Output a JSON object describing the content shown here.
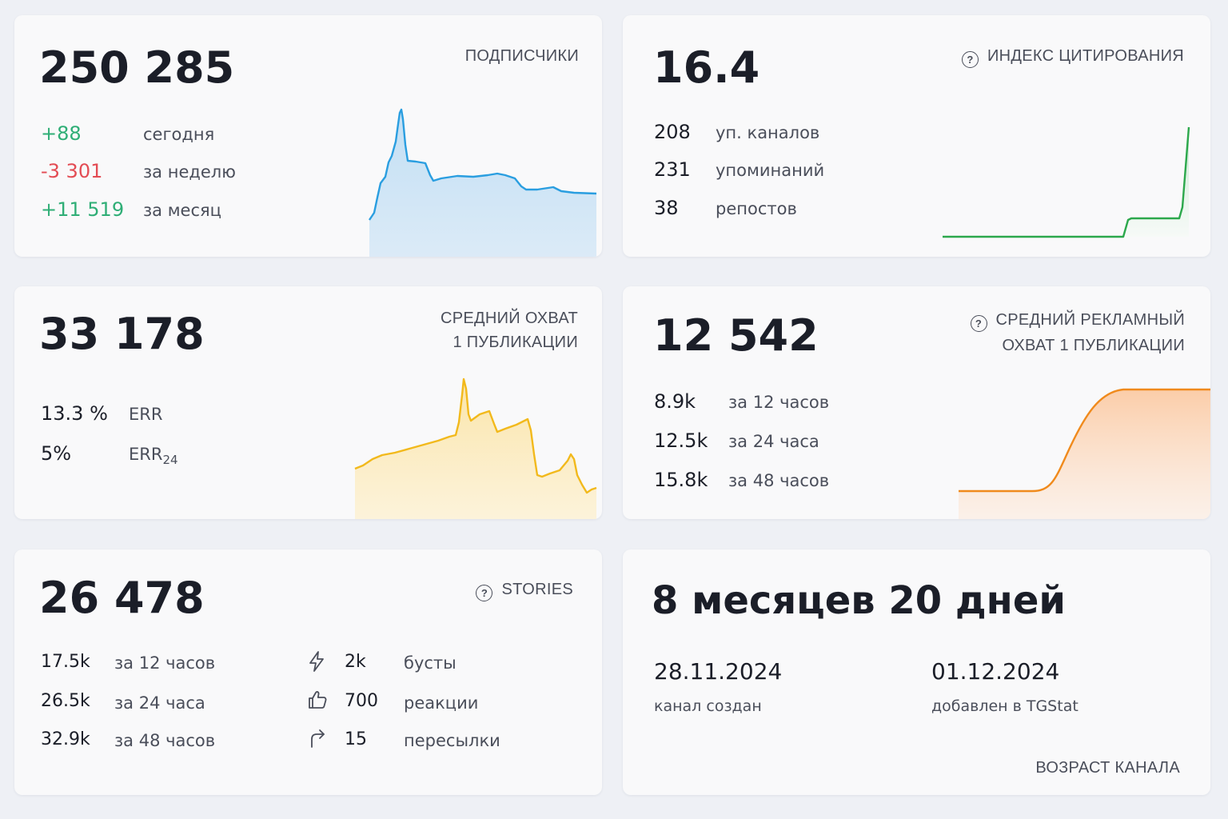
{
  "subscribers": {
    "value": "250 285",
    "caption": "ПОДПИСЧИКИ",
    "rows": [
      {
        "value": "+88",
        "label": "сегодня"
      },
      {
        "value": "-3 301",
        "label": "за неделю"
      },
      {
        "value": "+11 519",
        "label": "за месяц"
      }
    ],
    "color": "#2a9ee0"
  },
  "citation": {
    "value": "16.4",
    "caption": "ИНДЕКС ЦИТИРОВАНИЯ",
    "icon": "question-circle-icon",
    "rows": [
      {
        "value": "208",
        "label": "уп. каналов"
      },
      {
        "value": "231",
        "label": "упоминаний"
      },
      {
        "value": "38",
        "label": "репостов"
      }
    ],
    "color": "#2ca84c"
  },
  "reach": {
    "value": "33 178",
    "caption_line1": "СРЕДНИЙ ОХВАТ",
    "caption_line2": "1 ПУБЛИКАЦИИ",
    "rows": [
      {
        "value": "13.3 %",
        "label": "ERR",
        "sub": ""
      },
      {
        "value": "5%",
        "label": "ERR",
        "sub": "24"
      }
    ],
    "color": "#f2b91c"
  },
  "ad_reach": {
    "value": "12 542",
    "caption_line1": "СРЕДНИЙ РЕКЛАМНЫЙ",
    "caption_line2": "ОХВАТ 1 ПУБЛИКАЦИИ",
    "icon": "question-circle-icon",
    "rows": [
      {
        "value": "8.9k",
        "label": "за 12 часов"
      },
      {
        "value": "12.5k",
        "label": "за 24 часа"
      },
      {
        "value": "15.8k",
        "label": "за 48 часов"
      }
    ],
    "color": "#f08a1c"
  },
  "stories": {
    "value": "26 478",
    "caption": "STORIES",
    "icon": "question-circle-icon",
    "rows": [
      {
        "value": "17.5k",
        "label": "за 12 часов"
      },
      {
        "value": "26.5k",
        "label": "за 24 часа"
      },
      {
        "value": "32.9k",
        "label": "за 48 часов"
      }
    ],
    "stats": [
      {
        "icon": "lightning-icon",
        "value": "2k",
        "label": "бусты"
      },
      {
        "icon": "thumbs-up-icon",
        "value": "700",
        "label": "реакции"
      },
      {
        "icon": "forward-arrow-icon",
        "value": "15",
        "label": "пересылки"
      }
    ]
  },
  "age": {
    "value": "8 месяцев 20 дней",
    "created_date": "28.11.2024",
    "created_label": "канал создан",
    "added_date": "01.12.2024",
    "added_label": "добавлен в TGStat",
    "caption": "ВОЗРАСТ КАНАЛА"
  }
}
